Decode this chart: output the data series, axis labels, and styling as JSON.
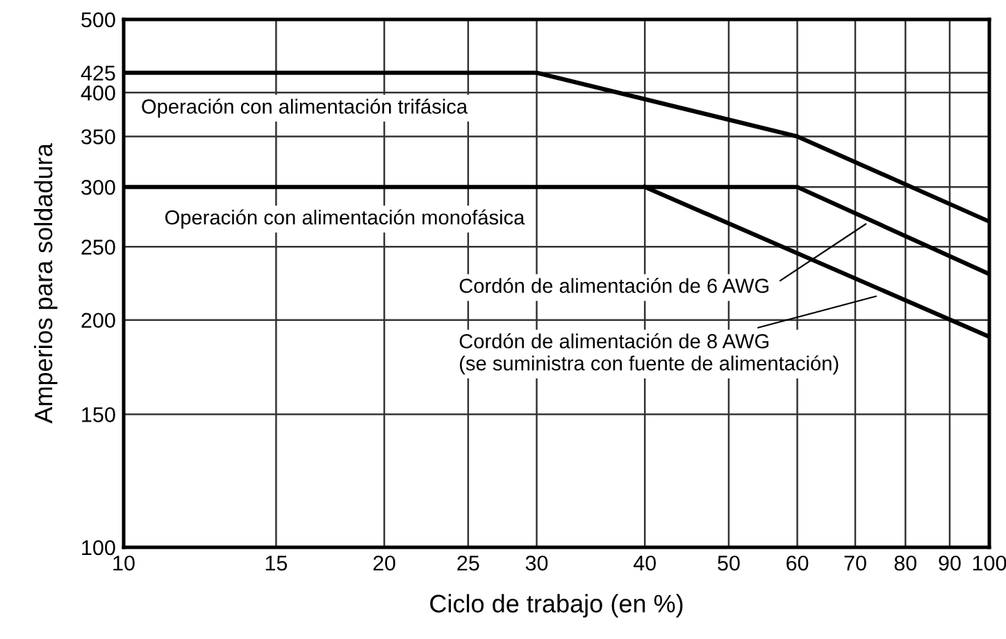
{
  "chart_data": {
    "type": "line",
    "xlabel": "Ciclo de trabajo (en %)",
    "ylabel": "Amperios para soldadura",
    "log": "xy",
    "series": [
      {
        "color": "#000000",
        "x": [
          10,
          30,
          60,
          100
        ],
        "values": [
          425,
          425,
          350,
          270
        ]
      },
      {
        "color": "#000000",
        "x": [
          10,
          60,
          100
        ],
        "values": [
          300,
          300,
          230
        ]
      },
      {
        "color": "#000000",
        "x": [
          40,
          100
        ],
        "values": [
          300,
          190
        ]
      }
    ],
    "xlim": [
      10,
      100
    ],
    "ylim": [
      100,
      500
    ],
    "xticks": [
      10,
      15,
      20,
      25,
      30,
      40,
      50,
      60,
      70,
      80,
      90,
      100
    ],
    "yticks": [
      100,
      150,
      200,
      250,
      300,
      350,
      400,
      425,
      500
    ],
    "grid": true,
    "marker": "none",
    "line_style": "solid",
    "annotations": [
      "Operación con alimentación trifásica",
      "Operación con alimentación monofásica",
      {
        "text": "Cordón de alimentación de 6 AWG",
        "x": 72,
        "y": 268
      },
      {
        "text": "Cordón de alimentación de 8 AWG\n(se suministra con fuente de alimentación)",
        "x": 74,
        "y": 215
      }
    ]
  }
}
